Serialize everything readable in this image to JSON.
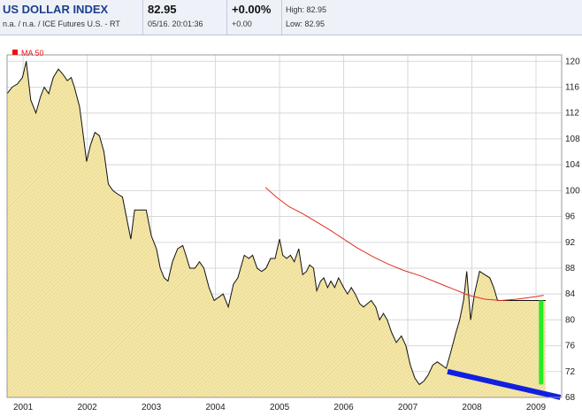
{
  "header": {
    "title": "US DOLLAR INDEX",
    "subtitle": "n.a. / n.a. / ICE Futures U.S. - RT",
    "price": "82.95",
    "datetime": "05/16. 20:01:36",
    "change_pct": "+0.00%",
    "change_abs": "+0.00",
    "high": "High: 82.95",
    "low": "Low: 82.95"
  },
  "legend": {
    "ma_label": "MA 50",
    "ma_color": "#ee1111"
  },
  "colors": {
    "area_fill": "#f5e8a6",
    "area_line": "#111111",
    "ma_line": "#e03020",
    "support_line": "#1020e0",
    "drop_marker": "#22ee22"
  },
  "chart_data": {
    "type": "area",
    "xlim": [
      2000.75,
      2009.4
    ],
    "ylim": [
      68,
      121
    ],
    "x_ticks": [
      2001,
      2002,
      2003,
      2004,
      2005,
      2006,
      2007,
      2008,
      2009
    ],
    "x_tick_labels": [
      "2001",
      "2002",
      "2003",
      "2004",
      "2005",
      "2006",
      "2007",
      "2008",
      "2009"
    ],
    "y_ticks": [
      68,
      72,
      76,
      80,
      84,
      88,
      92,
      96,
      100,
      104,
      108,
      112,
      116,
      120
    ],
    "y_tick_labels": [
      "68",
      "72",
      "76",
      "80",
      "84",
      "88",
      "92",
      "96",
      "100",
      "104",
      "108",
      "112",
      "116",
      "120"
    ],
    "grid": true,
    "legend_position": "top-left",
    "series": [
      {
        "name": "",
        "kind": "price",
        "x": [
          2000.75,
          2000.83,
          2000.91,
          2000.99,
          2001.05,
          2001.12,
          2001.2,
          2001.27,
          2001.33,
          2001.4,
          2001.47,
          2001.55,
          2001.62,
          2001.69,
          2001.75,
          2001.8,
          2001.88,
          2001.92,
          2001.99,
          2002.05,
          2002.12,
          2002.19,
          2002.26,
          2002.33,
          2002.4,
          2002.47,
          2002.55,
          2002.61,
          2002.68,
          2002.74,
          2002.83,
          2002.92,
          2003.0,
          2003.08,
          2003.14,
          2003.2,
          2003.26,
          2003.33,
          2003.41,
          2003.49,
          2003.54,
          2003.6,
          2003.68,
          2003.75,
          2003.82,
          2003.9,
          2003.98,
          2004.05,
          2004.12,
          2004.2,
          2004.28,
          2004.35,
          2004.45,
          2004.52,
          2004.58,
          2004.65,
          2004.72,
          2004.79,
          2004.86,
          2004.93,
          2005.0,
          2005.05,
          2005.11,
          2005.17,
          2005.23,
          2005.3,
          2005.36,
          2005.42,
          2005.47,
          2005.53,
          2005.58,
          2005.64,
          2005.69,
          2005.75,
          2005.8,
          2005.86,
          2005.92,
          2006.0,
          2006.06,
          2006.12,
          2006.18,
          2006.25,
          2006.31,
          2006.37,
          2006.43,
          2006.5,
          2006.56,
          2006.62,
          2006.68,
          2006.75,
          2006.82,
          2006.9,
          2006.97,
          2007.04,
          2007.11,
          2007.18,
          2007.25,
          2007.32,
          2007.39,
          2007.46,
          2007.53,
          2007.6,
          2007.67,
          2007.75,
          2007.81,
          2007.87,
          2007.92,
          2007.98,
          2008.04,
          2008.12,
          2008.2,
          2008.28,
          2008.34,
          2008.4,
          2008.45,
          2008.5,
          2008.56,
          2008.62,
          2008.68,
          2008.73,
          2008.8,
          2008.85,
          2008.9,
          2008.95,
          2009.0,
          2009.05,
          2009.1,
          2009.15
        ],
        "y": [
          115,
          116,
          116.5,
          117.5,
          120,
          114,
          112,
          114.5,
          116,
          115,
          117.5,
          118.8,
          118,
          117,
          117.5,
          116,
          113,
          110,
          104.5,
          107,
          109,
          108.5,
          106,
          101,
          100,
          99.5,
          99,
          96,
          92.5,
          97,
          97,
          97,
          93,
          91,
          88,
          86.5,
          86,
          89,
          91,
          91.5,
          90,
          88,
          88,
          89,
          88,
          85,
          83,
          83.5,
          84,
          82,
          85.5,
          86.5,
          90,
          89.5,
          90,
          88,
          87.5,
          88,
          89.5,
          89.5,
          92.5,
          90,
          89.5,
          90,
          89,
          91,
          87,
          87.5,
          88.5,
          88,
          84.5,
          86,
          86.5,
          85,
          86,
          85,
          86.5,
          85,
          84,
          85,
          84,
          82.5,
          82,
          82.5,
          83,
          82,
          80,
          81,
          80,
          78,
          76.5,
          77.5,
          76,
          73,
          71,
          70,
          70.5,
          71.5,
          73,
          73.5,
          73,
          72.5,
          75,
          78,
          80,
          83,
          87.5,
          80,
          84,
          87.5,
          87,
          86.5,
          85,
          83,
          83,
          83,
          83,
          83,
          83,
          83,
          83,
          83,
          83,
          83,
          83,
          83,
          83,
          83
        ]
      },
      {
        "name": "MA 50",
        "kind": "ma",
        "x": [
          2004.78,
          2004.95,
          2005.15,
          2005.35,
          2005.6,
          2005.8,
          2006.0,
          2006.2,
          2006.45,
          2006.7,
          2006.95,
          2007.2,
          2007.45,
          2007.7,
          2007.95,
          2008.2,
          2008.45,
          2008.7,
          2008.85,
          2009.0,
          2009.12
        ],
        "y": [
          100.5,
          99,
          97.5,
          96.5,
          95,
          93.8,
          92.5,
          91.2,
          89.8,
          88.6,
          87.6,
          86.8,
          85.8,
          84.8,
          83.8,
          83.2,
          83,
          83.2,
          83.4,
          83.6,
          83.8
        ]
      },
      {
        "name": "",
        "kind": "trendline",
        "x": [
          2007.62,
          2009.38
        ],
        "y": [
          72,
          68
        ]
      },
      {
        "name": "",
        "kind": "marker",
        "x": [
          2009.08,
          2009.08
        ],
        "y": [
          83,
          70
        ]
      }
    ]
  }
}
